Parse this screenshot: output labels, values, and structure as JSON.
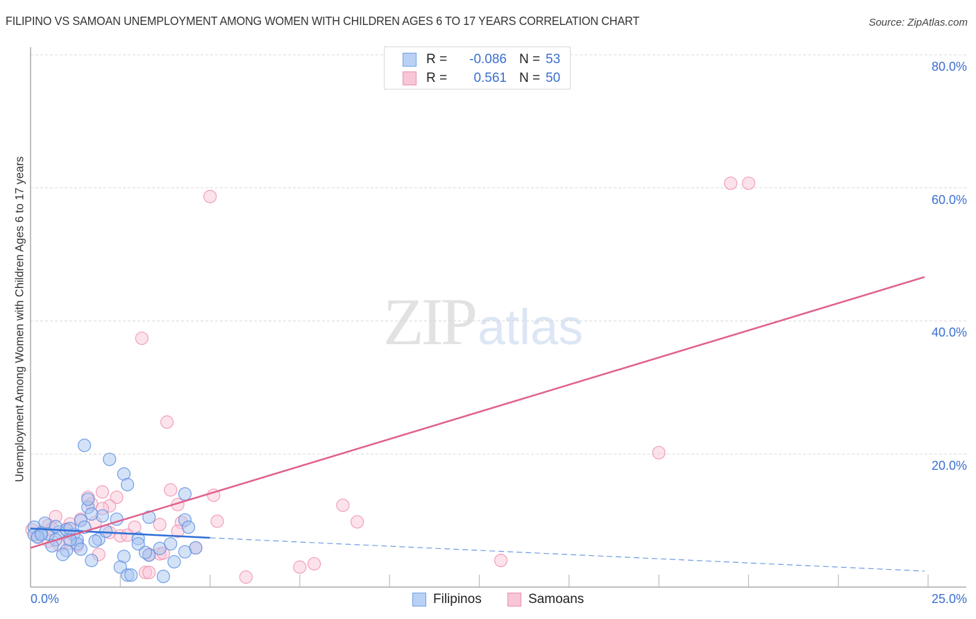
{
  "title": "FILIPINO VS SAMOAN UNEMPLOYMENT AMONG WOMEN WITH CHILDREN AGES 6 TO 17 YEARS CORRELATION CHART",
  "source": "Source: ZipAtlas.com",
  "watermark": {
    "zip": "ZIP",
    "atlas": "atlas"
  },
  "legend": {
    "rows": [
      {
        "series": "Filipinos",
        "r_label": "R =",
        "r_value": "-0.086",
        "n_label": "N =",
        "n_value": "53",
        "color": "#6f9fe6",
        "fill": "#b9d1f5"
      },
      {
        "series": "Samoans",
        "r_label": "R =",
        "r_value": "0.561",
        "n_label": "N =",
        "n_value": "50",
        "color": "#ea8fae",
        "fill": "#f8c6d6"
      }
    ]
  },
  "bottom_legend": {
    "items": [
      "Filipinos",
      "Samoans"
    ]
  },
  "axes": {
    "x_min_label": "0.0%",
    "x_max_label": "25.0%",
    "y_ticks": [
      "80.0%",
      "60.0%",
      "40.0%",
      "20.0%"
    ],
    "ylabel": "Unemployment Among Women with Children Ages 6 to 17 years"
  },
  "colors": {
    "filipino_stroke": "#5b8fe0",
    "filipino_fill": "#a9c6f2",
    "filipino_line": "#2f6fd6",
    "samoan_stroke": "#ee8fb0",
    "samoan_fill": "#f9c8d8",
    "samoan_line": "#e0608c",
    "tick_text": "#3b6fd0",
    "grid": "#d9d9d9"
  },
  "chart_data": {
    "type": "scatter",
    "title": "FILIPINO VS SAMOAN UNEMPLOYMENT AMONG WOMEN WITH CHILDREN AGES 6 TO 17 YEARS CORRELATION CHART",
    "xlabel": "",
    "ylabel": "Unemployment Among Women with Children Ages 6 to 17 years",
    "xlim": [
      0,
      25
    ],
    "ylim": [
      0,
      80
    ],
    "x_unit": "%",
    "y_unit": "%",
    "x_tick_labels": [
      "0.0%",
      "25.0%"
    ],
    "y_tick_labels": [
      "20.0%",
      "40.0%",
      "60.0%",
      "80.0%"
    ],
    "grid": true,
    "legend_position": "top-center and bottom",
    "series": [
      {
        "name": "Filipinos",
        "R": -0.086,
        "N": 53,
        "trendline": {
          "x": [
            0,
            5.0,
            24.9
          ],
          "y": [
            8.8,
            7.4,
            2.4
          ],
          "solid_until_x": 5.0
        },
        "points": [
          [
            1.5,
            21.3
          ],
          [
            2.2,
            19.2
          ],
          [
            2.6,
            17.0
          ],
          [
            2.7,
            15.4
          ],
          [
            4.3,
            14.0
          ],
          [
            1.6,
            12.0
          ],
          [
            1.6,
            13.2
          ],
          [
            3.3,
            10.5
          ],
          [
            2.0,
            10.7
          ],
          [
            2.4,
            10.2
          ],
          [
            1.7,
            11.0
          ],
          [
            4.3,
            10.1
          ],
          [
            4.4,
            9.0
          ],
          [
            0.4,
            9.6
          ],
          [
            1.4,
            10.0
          ],
          [
            0.1,
            9.0
          ],
          [
            0.3,
            8.1
          ],
          [
            0.5,
            8.0
          ],
          [
            0.8,
            8.3
          ],
          [
            1.0,
            8.6
          ],
          [
            1.2,
            7.9
          ],
          [
            1.3,
            7.1
          ],
          [
            0.7,
            7.1
          ],
          [
            1.9,
            7.2
          ],
          [
            3.0,
            7.3
          ],
          [
            3.0,
            6.5
          ],
          [
            3.9,
            6.5
          ],
          [
            4.6,
            5.9
          ],
          [
            0.6,
            6.2
          ],
          [
            1.3,
            6.5
          ],
          [
            1.4,
            5.7
          ],
          [
            1.0,
            5.5
          ],
          [
            0.9,
            4.9
          ],
          [
            4.3,
            5.3
          ],
          [
            3.3,
            4.8
          ],
          [
            2.6,
            4.6
          ],
          [
            1.7,
            4.0
          ],
          [
            4.0,
            3.8
          ],
          [
            2.5,
            3.0
          ],
          [
            2.7,
            1.8
          ],
          [
            2.8,
            1.8
          ],
          [
            3.7,
            1.6
          ],
          [
            1.8,
            6.9
          ],
          [
            0.1,
            7.9
          ],
          [
            0.2,
            7.5
          ],
          [
            0.3,
            7.9
          ],
          [
            0.7,
            9.1
          ],
          [
            1.1,
            8.8
          ],
          [
            1.5,
            9.0
          ],
          [
            1.1,
            7.1
          ],
          [
            2.1,
            8.4
          ],
          [
            3.6,
            5.8
          ],
          [
            3.2,
            5.2
          ]
        ]
      },
      {
        "name": "Samoans",
        "R": 0.561,
        "N": 50,
        "trendline": {
          "x": [
            0,
            24.9
          ],
          "y": [
            5.9,
            46.6
          ]
        },
        "points": [
          [
            19.5,
            60.7
          ],
          [
            20.0,
            60.7
          ],
          [
            5.0,
            58.7
          ],
          [
            3.1,
            37.4
          ],
          [
            3.8,
            24.8
          ],
          [
            17.5,
            20.2
          ],
          [
            2.0,
            14.3
          ],
          [
            2.4,
            13.5
          ],
          [
            1.6,
            13.5
          ],
          [
            5.1,
            13.8
          ],
          [
            3.9,
            14.6
          ],
          [
            8.7,
            12.3
          ],
          [
            1.7,
            12.5
          ],
          [
            2.2,
            12.2
          ],
          [
            4.1,
            12.4
          ],
          [
            2.0,
            11.8
          ],
          [
            0.7,
            10.6
          ],
          [
            9.1,
            9.8
          ],
          [
            5.2,
            9.9
          ],
          [
            1.4,
            10.2
          ],
          [
            1.1,
            9.5
          ],
          [
            4.2,
            9.7
          ],
          [
            3.6,
            9.4
          ],
          [
            0.5,
            9.3
          ],
          [
            2.9,
            9.0
          ],
          [
            1.0,
            8.7
          ],
          [
            2.2,
            8.2
          ],
          [
            2.5,
            7.7
          ],
          [
            2.7,
            7.8
          ],
          [
            4.1,
            8.4
          ],
          [
            0.04,
            8.6
          ],
          [
            0.2,
            7.6
          ],
          [
            0.3,
            8.2
          ],
          [
            0.5,
            6.9
          ],
          [
            0.8,
            6.3
          ],
          [
            1.3,
            6.2
          ],
          [
            1.1,
            6.6
          ],
          [
            1.9,
            4.9
          ],
          [
            3.6,
            5.0
          ],
          [
            3.3,
            4.9
          ],
          [
            3.7,
            5.1
          ],
          [
            4.6,
            5.9
          ],
          [
            13.1,
            4.0
          ],
          [
            7.9,
            3.5
          ],
          [
            7.5,
            3.0
          ],
          [
            3.2,
            2.2
          ],
          [
            3.3,
            2.2
          ],
          [
            6.0,
            1.5
          ],
          [
            0.6,
            8.8
          ],
          [
            1.8,
            9.7
          ]
        ]
      }
    ]
  }
}
